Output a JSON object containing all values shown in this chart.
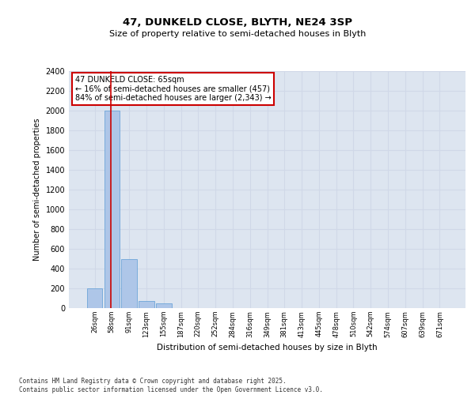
{
  "title": "47, DUNKELD CLOSE, BLYTH, NE24 3SP",
  "subtitle": "Size of property relative to semi-detached houses in Blyth",
  "xlabel": "Distribution of semi-detached houses by size in Blyth",
  "ylabel": "Number of semi-detached properties",
  "categories": [
    "26sqm",
    "58sqm",
    "91sqm",
    "123sqm",
    "155sqm",
    "187sqm",
    "220sqm",
    "252sqm",
    "284sqm",
    "316sqm",
    "349sqm",
    "381sqm",
    "413sqm",
    "445sqm",
    "478sqm",
    "510sqm",
    "542sqm",
    "574sqm",
    "607sqm",
    "639sqm",
    "671sqm"
  ],
  "values": [
    200,
    2000,
    500,
    75,
    50,
    0,
    0,
    0,
    0,
    0,
    0,
    0,
    0,
    0,
    0,
    0,
    0,
    0,
    0,
    0,
    0
  ],
  "bar_color": "#aec6e8",
  "bar_edge_color": "#5b9bd5",
  "grid_color": "#d0d8e8",
  "background_color": "#dde5f0",
  "vline_color": "#cc0000",
  "vline_x_idx": 1,
  "annotation_text": "47 DUNKELD CLOSE: 65sqm\n← 16% of semi-detached houses are smaller (457)\n84% of semi-detached houses are larger (2,343) →",
  "annotation_box_color": "#ffffff",
  "annotation_box_edge": "#cc0000",
  "ylim": [
    0,
    2400
  ],
  "yticks": [
    0,
    200,
    400,
    600,
    800,
    1000,
    1200,
    1400,
    1600,
    1800,
    2000,
    2200,
    2400
  ],
  "footer_line1": "Contains HM Land Registry data © Crown copyright and database right 2025.",
  "footer_line2": "Contains public sector information licensed under the Open Government Licence v3.0."
}
